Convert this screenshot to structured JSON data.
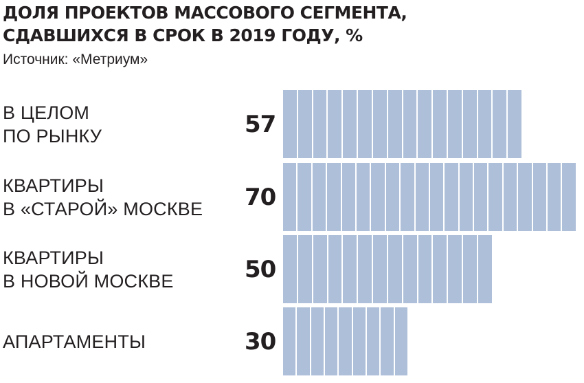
{
  "chart_data": {
    "type": "bar",
    "orientation": "horizontal",
    "title": [
      "ДОЛЯ ПРОЕКТОВ МАССОВОГО СЕГМЕНТА,",
      "СДАВШИХСЯ В СРОК В 2019 ГОДУ, %"
    ],
    "source": "Источник: «Метриум»",
    "categories": [
      [
        "В ЦЕЛОМ",
        "ПО РЫНКУ"
      ],
      [
        "КВАРТИРЫ",
        "В «СТАРОЙ» МОСКВЕ"
      ],
      [
        "КВАРТИРЫ",
        "В НОВОЙ МОСКВЕ"
      ],
      [
        "АПАРТАМЕНТЫ"
      ]
    ],
    "values": [
      57,
      70,
      50,
      30
    ],
    "value_labels": [
      "57",
      "70",
      "50",
      "30"
    ],
    "xlim": [
      0,
      70
    ],
    "grid": false,
    "legend": "none",
    "bar_color": "#adbfd9",
    "segment_unit": 3.5
  }
}
